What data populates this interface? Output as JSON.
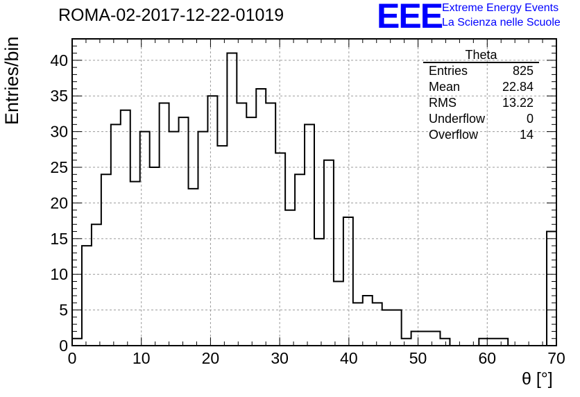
{
  "header": {
    "title": "ROMA-02-2017-12-22-01019",
    "logo_text": "EEE",
    "logo_line1": "Extreme Energy Events",
    "logo_line2": "La Scienza nelle Scuole"
  },
  "stats_box": {
    "title": "Theta",
    "rows": [
      {
        "label": "Entries",
        "value": "825"
      },
      {
        "label": "Mean",
        "value": "22.84"
      },
      {
        "label": "RMS",
        "value": "13.22"
      },
      {
        "label": "Underflow",
        "value": "0"
      },
      {
        "label": "Overflow",
        "value": "14"
      }
    ]
  },
  "colors": {
    "line": "#000000",
    "grid": "#9a9a9a",
    "logo": "#0000ff"
  },
  "chart_data": {
    "type": "histogram",
    "title": "ROMA-02-2017-12-22-01019",
    "xlabel": "θ [°]",
    "ylabel": "Entries/bin",
    "xlim": [
      0,
      70
    ],
    "ylim": [
      0,
      43
    ],
    "grid": true,
    "bin_width": 1.4,
    "bin_edges_start": 0,
    "values": [
      1,
      14,
      17,
      24,
      31,
      33,
      23,
      30,
      25,
      34,
      30,
      32,
      22,
      30,
      35,
      28,
      41,
      34,
      32,
      36,
      34,
      27,
      19,
      24,
      31,
      15,
      26,
      9,
      18,
      6,
      7,
      6,
      5,
      5,
      1,
      2,
      2,
      2,
      1,
      0,
      0,
      0,
      1,
      1,
      1,
      0,
      0,
      0,
      0,
      16
    ],
    "x_ticks": [
      0,
      10,
      20,
      30,
      40,
      50,
      60,
      70
    ],
    "y_ticks": [
      0,
      5,
      10,
      15,
      20,
      25,
      30,
      35,
      40
    ]
  }
}
